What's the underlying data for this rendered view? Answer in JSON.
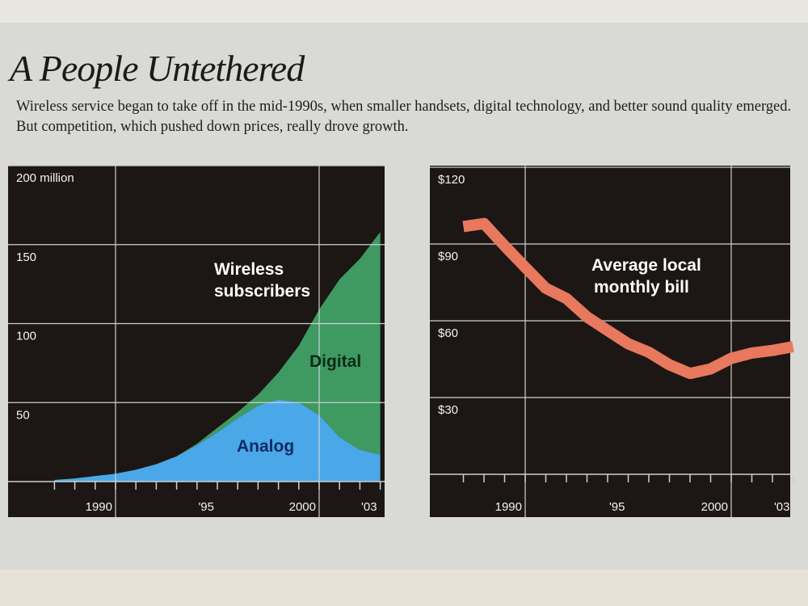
{
  "title": "A People Untethered",
  "subtitle": "Wireless service began to take off in the mid-1990s, when smaller handsets, digital technology, and better sound quality emerged. But competition, which pushed down prices, really drove growth.",
  "colors": {
    "panel": "#1c1714",
    "grid": "#cfcfcf",
    "analog": "#4aa8e8",
    "digital": "#3f9a62",
    "bill_line": "#e8785e",
    "analog_label": "#0e2a66",
    "digital_label": "#0c2a16"
  },
  "chart_data": [
    {
      "type": "area",
      "title": "Wireless subscribers",
      "x": [
        1987,
        1988,
        1989,
        1990,
        1991,
        1992,
        1993,
        1994,
        1995,
        1996,
        1997,
        1998,
        1999,
        2000,
        2001,
        2002,
        2003
      ],
      "series": [
        {
          "name": "Analog",
          "values": [
            1,
            2,
            3.5,
            5,
            7.5,
            11,
            16,
            23,
            31,
            40,
            48,
            52,
            50,
            42,
            28,
            20,
            17
          ]
        },
        {
          "name": "Digital",
          "values": [
            0,
            0,
            0,
            0,
            0,
            0,
            0,
            1,
            3,
            4,
            7,
            17,
            36,
            67,
            100,
            121,
            141
          ]
        }
      ],
      "ylim": [
        0,
        200
      ],
      "yticks": [
        50,
        100,
        150,
        200
      ],
      "ytick_labels": [
        "50",
        "100",
        "150",
        "200 million"
      ],
      "xlim": [
        1986,
        2003.2
      ],
      "xgrid": [
        1990,
        2000
      ],
      "xtick_labels": [
        {
          "year": 1990,
          "label": "1990"
        },
        {
          "year": 1995,
          "label": "'95"
        },
        {
          "year": 2000,
          "label": "2000"
        },
        {
          "year": 2003,
          "label": "'03"
        }
      ],
      "annotations": [
        "Wireless",
        "subscribers",
        "Digital",
        "Analog"
      ]
    },
    {
      "type": "line",
      "title": "Average local monthly bill",
      "x": [
        1987,
        1988,
        1989,
        1990,
        1991,
        1992,
        1993,
        1994,
        1995,
        1996,
        1997,
        1998,
        1999,
        2000,
        2001,
        2002,
        2003
      ],
      "series": [
        {
          "name": "Average local monthly bill",
          "values": [
            96.8,
            98.0,
            89.3,
            80.9,
            72.7,
            68.7,
            61.5,
            56.2,
            51.0,
            47.7,
            42.8,
            39.4,
            41.2,
            45.3,
            47.4,
            48.4,
            49.9
          ]
        }
      ],
      "ylim": [
        0,
        120
      ],
      "yticks": [
        30,
        60,
        90,
        120
      ],
      "ytick_labels": [
        "$30",
        "$60",
        "$90",
        "$120"
      ],
      "xlim": [
        1986,
        2003.2
      ],
      "xgrid": [
        1990,
        2000
      ],
      "xtick_labels": [
        {
          "year": 1990,
          "label": "1990"
        },
        {
          "year": 1995,
          "label": "'95"
        },
        {
          "year": 2000,
          "label": "2000"
        },
        {
          "year": 2003,
          "label": "'03"
        }
      ],
      "annotations": [
        "Average local",
        "monthly bill"
      ]
    }
  ]
}
